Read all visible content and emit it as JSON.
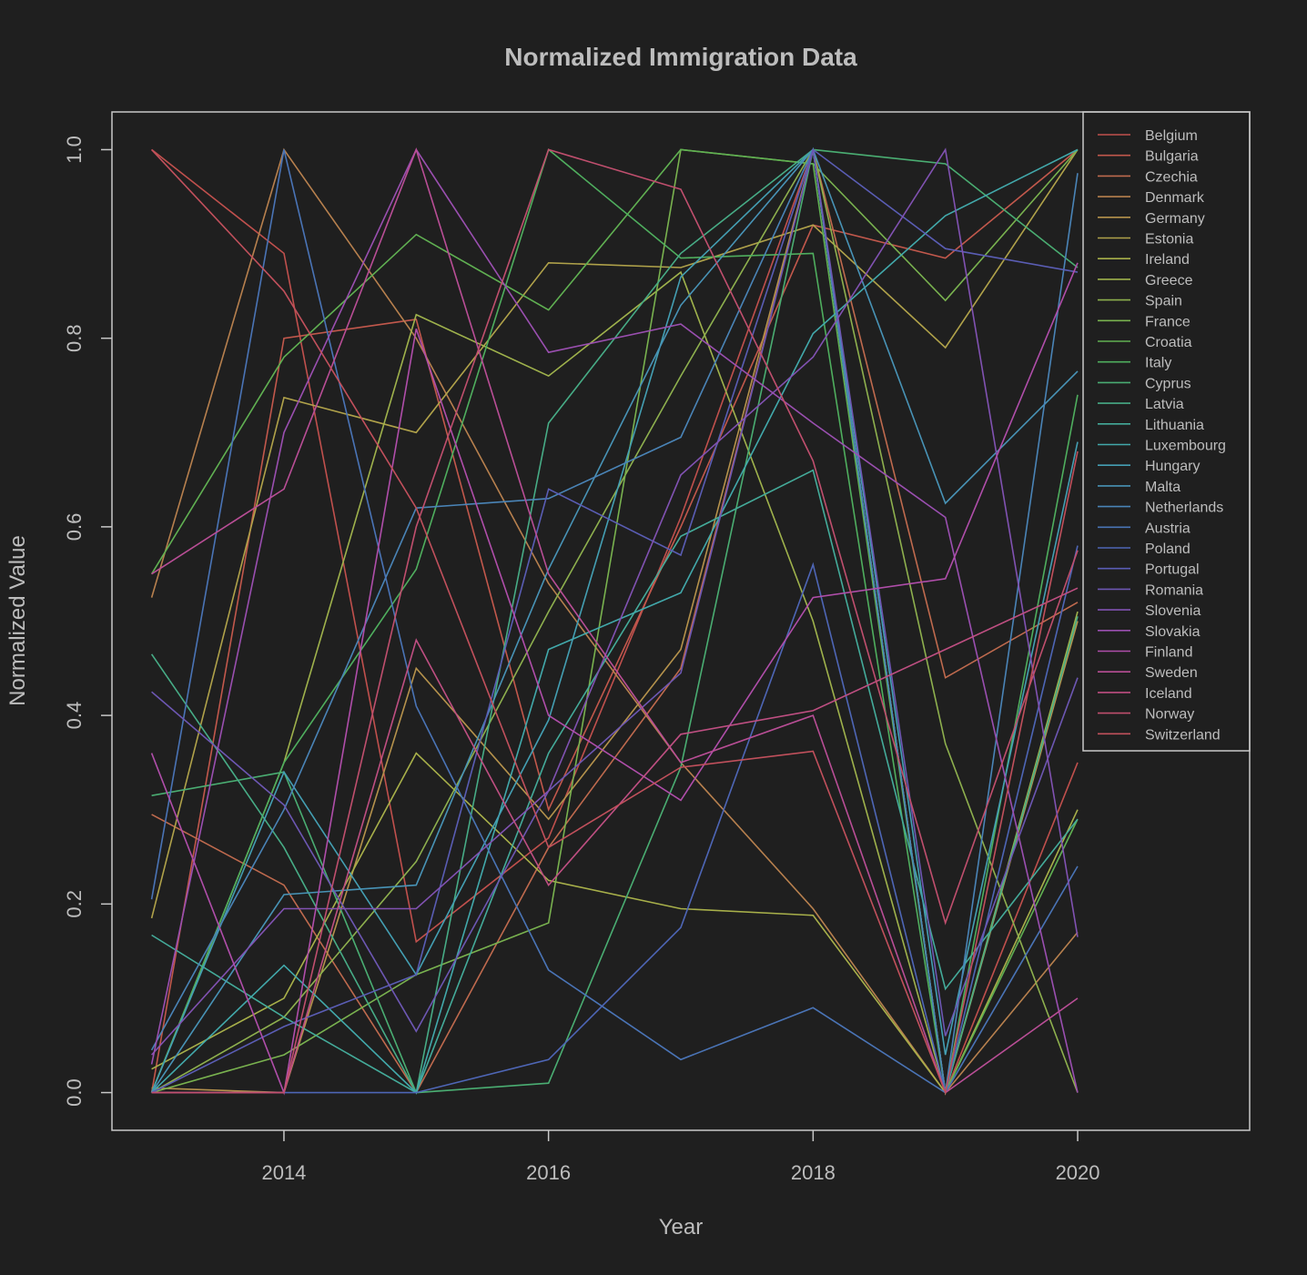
{
  "chart_data": {
    "type": "line",
    "title": "Normalized Immigration Data",
    "xlabel": "Year",
    "ylabel": "Normalized Value",
    "x": [
      2013,
      2014,
      2015,
      2016,
      2017,
      2018,
      2019,
      2020
    ],
    "xlim": [
      2012.7,
      2021.3
    ],
    "ylim": [
      -0.04,
      1.04
    ],
    "xticks": [
      "2014",
      "2016",
      "2018",
      "2020"
    ],
    "yticks": [
      "0.0",
      "0.2",
      "0.4",
      "0.6",
      "0.8",
      "1.0"
    ],
    "grid": false,
    "legend_position": "top-right",
    "series": [
      {
        "name": "Belgium",
        "color": "#c0504d",
        "values": [
          1.0,
          0.89,
          0.16,
          0.27,
          0.61,
          1.0,
          0.0,
          0.35
        ]
      },
      {
        "name": "Bulgaria",
        "color": "#c2584c",
        "values": [
          0.0,
          0.8,
          0.82,
          0.3,
          0.6,
          0.92,
          0.885,
          1.0
        ]
      },
      {
        "name": "Czechia",
        "color": "#bf6a4e",
        "values": [
          0.295,
          0.22,
          0.0,
          0.26,
          0.45,
          1.0,
          0.44,
          0.52
        ]
      },
      {
        "name": "Denmark",
        "color": "#b7804e",
        "values": [
          0.525,
          1.0,
          0.8,
          0.54,
          0.35,
          0.195,
          0.0,
          0.17
        ]
      },
      {
        "name": "Germany",
        "color": "#b5924c",
        "values": [
          0.005,
          0.0,
          0.45,
          0.29,
          0.47,
          1.0,
          0.0,
          0.5
        ]
      },
      {
        "name": "Estonia",
        "color": "#b0a24a",
        "values": [
          0.185,
          0.737,
          0.7,
          0.88,
          0.875,
          0.92,
          0.79,
          1.0
        ]
      },
      {
        "name": "Ireland",
        "color": "#a8b04a",
        "values": [
          0.025,
          0.1,
          0.36,
          0.225,
          0.195,
          0.188,
          0.0,
          0.3
        ]
      },
      {
        "name": "Greece",
        "color": "#9fb24c",
        "values": [
          0.0,
          0.35,
          0.825,
          0.76,
          0.87,
          0.5,
          0.0,
          0.51
        ]
      },
      {
        "name": "Spain",
        "color": "#8eb04e",
        "values": [
          0.0,
          0.08,
          0.245,
          0.51,
          0.76,
          1.0,
          0.37,
          0.0
        ]
      },
      {
        "name": "France",
        "color": "#79b24f",
        "values": [
          0.0,
          0.04,
          0.125,
          0.18,
          1.0,
          0.985,
          0.84,
          1.0
        ]
      },
      {
        "name": "Croatia",
        "color": "#60b052",
        "values": [
          0.55,
          0.78,
          0.91,
          0.83,
          1.0,
          0.985,
          0.0,
          0.29
        ]
      },
      {
        "name": "Italy",
        "color": "#4fae5e",
        "values": [
          0.0,
          0.35,
          0.555,
          1.0,
          0.885,
          0.89,
          0.0,
          0.74
        ]
      },
      {
        "name": "Cyprus",
        "color": "#4aad72",
        "values": [
          0.315,
          0.34,
          0.0,
          0.01,
          0.345,
          1.0,
          0.985,
          0.875
        ]
      },
      {
        "name": "Latvia",
        "color": "#47ac86",
        "values": [
          0.465,
          0.26,
          0.0,
          0.71,
          0.89,
          1.0,
          0.0,
          0.505
        ]
      },
      {
        "name": "Lithuania",
        "color": "#44ab9a",
        "values": [
          0.167,
          0.08,
          0.0,
          0.36,
          0.59,
          0.66,
          0.11,
          0.29
        ]
      },
      {
        "name": "Luxembourg",
        "color": "#42a9ab",
        "values": [
          0.0,
          0.135,
          0.0,
          0.47,
          0.53,
          0.805,
          0.93,
          1.0
        ]
      },
      {
        "name": "Hungary",
        "color": "#449fb3",
        "values": [
          0.0,
          0.34,
          0.125,
          0.395,
          0.865,
          1.0,
          0.04,
          0.69
        ]
      },
      {
        "name": "Malta",
        "color": "#4893b6",
        "values": [
          0.0,
          0.21,
          0.22,
          0.555,
          0.835,
          1.0,
          0.625,
          0.765
        ]
      },
      {
        "name": "Netherlands",
        "color": "#4a84b7",
        "values": [
          0.045,
          0.3,
          0.62,
          0.63,
          0.695,
          1.0,
          0.0,
          0.975
        ]
      },
      {
        "name": "Austria",
        "color": "#4a74b6",
        "values": [
          0.205,
          1.0,
          0.41,
          0.13,
          0.035,
          0.09,
          0.0,
          0.24
        ]
      },
      {
        "name": "Poland",
        "color": "#4e66b6",
        "values": [
          0.0,
          0.0,
          0.0,
          0.035,
          0.175,
          0.56,
          0.0,
          0.58
        ]
      },
      {
        "name": "Portugal",
        "color": "#5a5db4",
        "values": [
          0.0,
          0.07,
          0.125,
          0.64,
          0.57,
          1.0,
          0.895,
          0.87
        ]
      },
      {
        "name": "Romania",
        "color": "#6d57b3",
        "values": [
          0.425,
          0.305,
          0.065,
          0.32,
          0.445,
          1.0,
          0.06,
          0.44
        ]
      },
      {
        "name": "Slovenia",
        "color": "#8152b2",
        "values": [
          0.04,
          0.195,
          0.195,
          0.32,
          0.655,
          0.78,
          1.0,
          0.165
        ]
      },
      {
        "name": "Slovakia",
        "color": "#9a4fb0",
        "values": [
          0.03,
          0.7,
          1.0,
          0.785,
          0.815,
          0.71,
          0.61,
          0.0
        ]
      },
      {
        "name": "Finland",
        "color": "#b04eaa",
        "values": [
          0.36,
          0.0,
          0.81,
          0.4,
          0.31,
          0.525,
          0.545,
          0.88
        ]
      },
      {
        "name": "Sweden",
        "color": "#b94e96",
        "values": [
          0.55,
          0.64,
          1.0,
          0.55,
          0.35,
          0.4,
          0.0,
          0.1
        ]
      },
      {
        "name": "Iceland",
        "color": "#bf4f82",
        "values": [
          0.0,
          0.0,
          0.48,
          0.22,
          0.38,
          0.405,
          0.47,
          0.535
        ]
      },
      {
        "name": "Norway",
        "color": "#c04f6e",
        "values": [
          0.0,
          0.0,
          0.6,
          1.0,
          0.958,
          0.67,
          0.18,
          0.575
        ]
      },
      {
        "name": "Switzerland",
        "color": "#c1505c",
        "values": [
          1.0,
          0.85,
          0.62,
          0.26,
          0.345,
          0.362,
          0.0,
          0.68
        ]
      }
    ]
  }
}
